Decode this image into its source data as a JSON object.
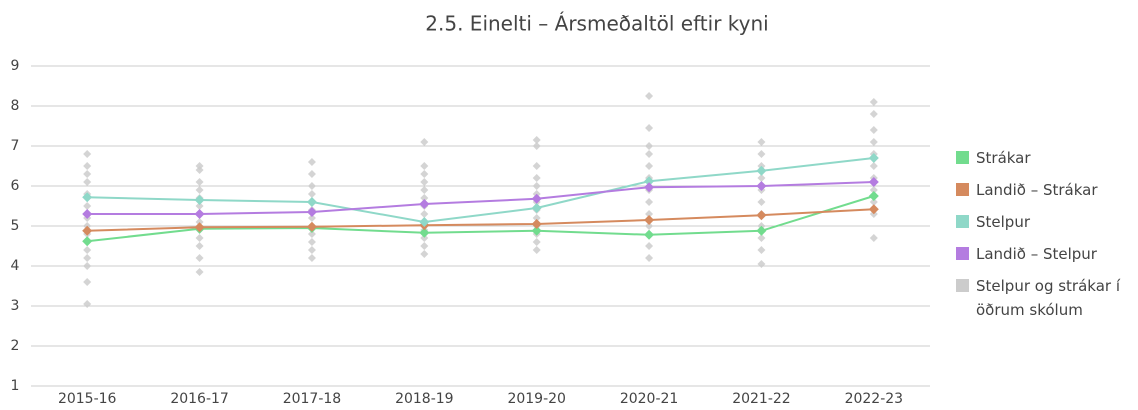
{
  "chart_data": {
    "type": "line",
    "title": "2.5. Einelti – Ársmeðaltöl eftir kyni",
    "categories": [
      "2015-16",
      "2016-17",
      "2017-18",
      "2018-19",
      "2019-20",
      "2020-21",
      "2021-22",
      "2022-23"
    ],
    "ylim": [
      1,
      9
    ],
    "yticks": [
      1,
      2,
      3,
      4,
      5,
      6,
      7,
      8,
      9
    ],
    "grid": true,
    "legend": "right",
    "series": [
      {
        "name": "Strákar",
        "color": "#72dc8e",
        "values": [
          4.62,
          4.93,
          4.95,
          4.83,
          4.88,
          4.78,
          4.88,
          5.75
        ]
      },
      {
        "name": "Landið – Strákar",
        "color": "#d58a5e",
        "values": [
          4.88,
          4.97,
          4.98,
          5.02,
          5.05,
          5.15,
          5.27,
          5.42
        ]
      },
      {
        "name": "Stelpur",
        "color": "#8fd8c8",
        "values": [
          5.72,
          5.65,
          5.6,
          5.1,
          5.45,
          6.12,
          6.38,
          6.7
        ]
      },
      {
        "name": "Landið – Stelpur",
        "color": "#b47ce0",
        "values": [
          5.3,
          5.3,
          5.35,
          5.55,
          5.68,
          5.97,
          6.0,
          6.1
        ]
      },
      {
        "name": "Stelpur og strákar í öðrum skólum",
        "color": "#cccccc",
        "scatter": true,
        "values": [
          [
            3.05,
            3.6,
            4.0,
            4.2,
            4.4,
            4.6,
            4.8,
            5.0,
            5.2,
            5.5,
            5.8,
            6.1,
            6.3,
            6.5,
            6.8
          ],
          [
            3.85,
            4.2,
            4.5,
            4.7,
            4.9,
            5.1,
            5.3,
            5.5,
            5.7,
            5.9,
            6.1,
            6.4,
            6.5
          ],
          [
            4.2,
            4.4,
            4.6,
            4.8,
            5.0,
            5.2,
            5.4,
            5.6,
            5.8,
            6.0,
            6.3,
            6.6
          ],
          [
            4.3,
            4.5,
            4.7,
            4.9,
            5.1,
            5.3,
            5.5,
            5.7,
            5.9,
            6.1,
            6.3,
            6.5,
            7.1
          ],
          [
            4.4,
            4.6,
            4.8,
            5.0,
            5.2,
            5.4,
            5.6,
            5.8,
            6.0,
            6.2,
            6.5,
            7.0,
            7.15
          ],
          [
            4.2,
            4.5,
            4.8,
            5.0,
            5.3,
            5.6,
            5.9,
            6.2,
            6.5,
            6.8,
            7.0,
            7.45,
            8.25
          ],
          [
            4.05,
            4.4,
            4.7,
            5.0,
            5.3,
            5.6,
            5.9,
            6.2,
            6.5,
            6.8,
            7.1
          ],
          [
            4.7,
            5.3,
            5.6,
            5.9,
            6.2,
            6.5,
            6.8,
            7.1,
            7.4,
            7.8,
            8.1
          ]
        ]
      }
    ]
  }
}
